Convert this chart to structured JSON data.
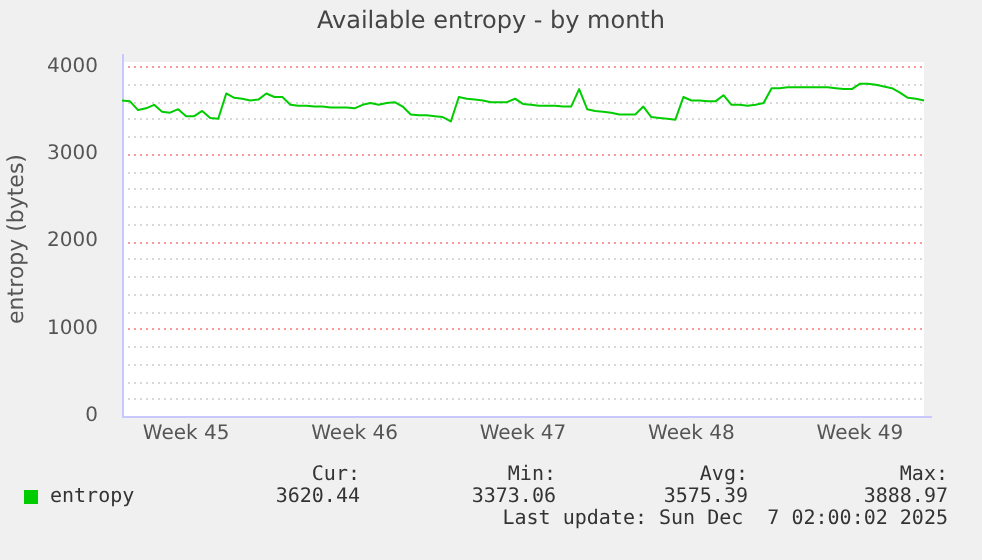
{
  "chart_data": {
    "type": "line",
    "title": "Available entropy - by month",
    "ylabel": "entropy (bytes)",
    "categories": [
      null,
      null,
      null,
      null,
      null,
      null,
      null,
      null,
      "Week 45",
      null,
      null,
      null,
      null,
      null,
      null,
      null,
      null,
      null,
      null,
      null,
      null,
      null,
      null,
      null,
      null,
      null,
      null,
      null,
      null,
      "Week 46",
      null,
      null,
      null,
      null,
      null,
      null,
      null,
      null,
      null,
      null,
      null,
      null,
      null,
      null,
      null,
      null,
      null,
      null,
      null,
      null,
      "Week 47",
      null,
      null,
      null,
      null,
      null,
      null,
      null,
      null,
      null,
      null,
      null,
      null,
      null,
      null,
      null,
      null,
      null,
      null,
      null,
      null,
      "Week 48",
      null,
      null,
      null,
      null,
      null,
      null,
      null,
      null,
      null,
      null,
      null,
      null,
      null,
      null,
      null,
      null,
      null,
      null,
      null,
      null,
      "Week 49",
      null,
      null,
      null,
      null,
      null,
      null,
      null,
      null
    ],
    "series": [
      {
        "name": "entropy",
        "color": "#00cc00",
        "values": [
          3610,
          3600,
          3500,
          3520,
          3560,
          3480,
          3470,
          3510,
          3430,
          3430,
          3490,
          3410,
          3400,
          3690,
          3640,
          3630,
          3610,
          3620,
          3690,
          3650,
          3650,
          3560,
          3550,
          3550,
          3540,
          3540,
          3530,
          3530,
          3530,
          3520,
          3560,
          3580,
          3560,
          3580,
          3590,
          3540,
          3450,
          3440,
          3440,
          3430,
          3420,
          3370,
          3650,
          3630,
          3620,
          3610,
          3590,
          3590,
          3590,
          3630,
          3570,
          3560,
          3550,
          3550,
          3550,
          3540,
          3540,
          3740,
          3510,
          3490,
          3480,
          3470,
          3450,
          3450,
          3450,
          3540,
          3420,
          3410,
          3400,
          3390,
          3650,
          3610,
          3610,
          3600,
          3600,
          3670,
          3560,
          3560,
          3550,
          3560,
          3580,
          3750,
          3750,
          3760,
          3760,
          3760,
          3760,
          3760,
          3760,
          3750,
          3740,
          3740,
          3800,
          3800,
          3790,
          3770,
          3750,
          3700,
          3640,
          3630,
          3610
        ]
      }
    ],
    "ylim": [
      0,
      4050
    ],
    "yticks": [
      0,
      {
        "value": 200,
        "label": null
      },
      {
        "value": 400,
        "label": null
      },
      {
        "value": 600,
        "label": null
      },
      {
        "value": 800,
        "label": null
      },
      1000,
      {
        "value": 1200,
        "label": null
      },
      {
        "value": 1400,
        "label": null
      },
      {
        "value": 1600,
        "label": null
      },
      {
        "value": 1800,
        "label": null
      },
      2000,
      {
        "value": 2200,
        "label": null
      },
      {
        "value": 2400,
        "label": null
      },
      {
        "value": 2600,
        "label": null
      },
      {
        "value": 2800,
        "label": null
      },
      3000,
      {
        "value": 3200,
        "label": null
      },
      {
        "value": 3400,
        "label": null
      },
      {
        "value": 3600,
        "label": null
      },
      {
        "value": 3800,
        "label": null
      },
      4000
    ],
    "grid": "y",
    "legend": "bottom left",
    "marker": "none",
    "line_style": "solid",
    "annotations": [
      "Cur:",
      "3620.44",
      "Min:",
      "3373.06",
      "Avg:",
      "3575.39",
      "Max:",
      "3888.97",
      "Last update: Sun Dec  7 02:00:02 2025"
    ]
  }
}
